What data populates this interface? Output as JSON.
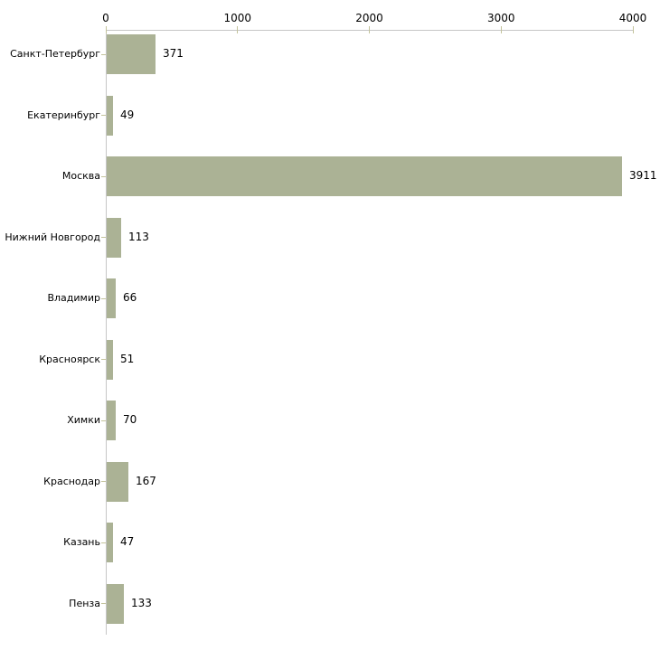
{
  "chart_data": {
    "type": "bar",
    "orientation": "horizontal",
    "title": "",
    "xlabel": "",
    "ylabel": "",
    "categories": [
      "Санкт-Петербург",
      "Екатеринбург",
      "Москва",
      "Нижний Новгород",
      "Владимир",
      "Красноярск",
      "Химки",
      "Краснодар",
      "Казань",
      "Пенза"
    ],
    "values": [
      371,
      49,
      3911,
      113,
      66,
      51,
      70,
      167,
      47,
      133
    ],
    "value_labels": [
      "371",
      "49",
      "3911",
      "113",
      "66",
      "51",
      "70",
      "167",
      "47",
      "133"
    ],
    "xlim": [
      0,
      4000
    ],
    "x_ticks": [
      0,
      1000,
      2000,
      3000,
      4000
    ],
    "x_tick_labels": [
      "0",
      "1000",
      "2000",
      "3000",
      "4000"
    ],
    "axis_position": "top",
    "grid": false,
    "legend": false,
    "colors": {
      "bar": "#abb295",
      "axis_line": "#c6c6c6",
      "tick": "#c3c39b",
      "text": "#000000",
      "background": "#ffffff"
    }
  }
}
